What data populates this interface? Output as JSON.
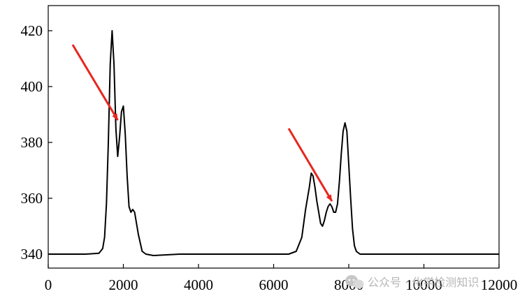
{
  "chart_data": {
    "type": "line",
    "title": "",
    "xlabel": "",
    "ylabel": "",
    "xlim": [
      0,
      12000
    ],
    "ylim": [
      335,
      429
    ],
    "x_ticks": [
      0,
      2000,
      4000,
      6000,
      8000,
      10000,
      12000
    ],
    "x_tick_labels": [
      "0",
      "2000",
      "4000",
      "6000",
      "8000",
      "10000",
      "12000"
    ],
    "y_ticks": [
      340,
      360,
      380,
      400,
      420
    ],
    "y_tick_labels": [
      "340",
      "360",
      "380",
      "400",
      "420"
    ],
    "grid": false,
    "legend": "none",
    "series": [
      {
        "color": "#000000",
        "x": [
          0,
          500,
          1000,
          1350,
          1450,
          1500,
          1550,
          1600,
          1650,
          1700,
          1750,
          1800,
          1850,
          1900,
          1950,
          2000,
          2050,
          2100,
          2150,
          2200,
          2250,
          2300,
          2350,
          2400,
          2450,
          2500,
          2600,
          2800,
          3500,
          4500,
          5500,
          6400,
          6600,
          6750,
          6850,
          6950,
          7000,
          7050,
          7100,
          7150,
          7200,
          7250,
          7300,
          7350,
          7400,
          7450,
          7500,
          7550,
          7600,
          7650,
          7700,
          7750,
          7800,
          7850,
          7900,
          7950,
          8000,
          8050,
          8100,
          8150,
          8200,
          8300,
          8600,
          9500,
          10500,
          11500,
          12000
        ],
        "y": [
          340,
          340,
          340,
          340.3,
          342,
          346,
          358,
          380,
          408,
          420,
          408,
          385,
          375,
          382,
          391,
          393,
          383,
          368,
          357,
          355,
          356,
          355,
          351,
          347,
          344,
          341,
          340,
          339.5,
          340,
          340,
          340,
          340,
          341,
          346,
          356,
          364,
          369,
          368,
          364,
          359,
          355,
          351,
          350,
          352,
          355,
          357,
          358,
          357,
          355,
          355,
          358,
          366,
          376,
          384,
          387,
          384,
          372,
          360,
          349,
          343,
          341,
          340,
          340,
          340,
          340,
          340,
          340
        ]
      }
    ],
    "annotations": [
      {
        "type": "arrow",
        "color": "#e8261e",
        "from": [
          650,
          415
        ],
        "to": [
          1850,
          388
        ]
      },
      {
        "type": "arrow",
        "color": "#e8261e",
        "from": [
          6400,
          385
        ],
        "to": [
          7550,
          359
        ]
      }
    ]
  },
  "watermark": {
    "text": "公众号 · 化学检测知识",
    "icon": "wechat-icon",
    "color": "#b7b7b7"
  }
}
